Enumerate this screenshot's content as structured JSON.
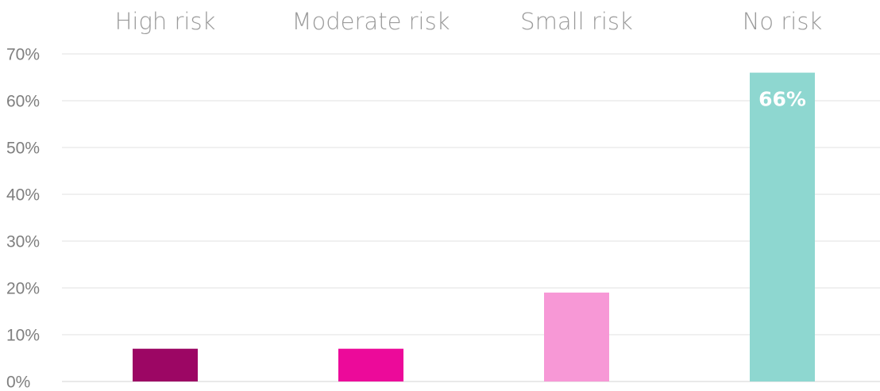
{
  "chart_data": {
    "type": "bar",
    "categories": [
      "High risk",
      "Moderate risk",
      "Small risk",
      "No risk"
    ],
    "values": [
      7,
      7,
      19,
      66
    ],
    "value_unit": "%",
    "ylim": [
      0,
      70
    ],
    "yticks": [
      0,
      10,
      20,
      30,
      40,
      50,
      60,
      70
    ],
    "ytick_labels": [
      "0%",
      "10%",
      "20%",
      "30%",
      "40%",
      "50%",
      "60%",
      "70%"
    ],
    "category_axis_position": "top",
    "grid": true,
    "colors": [
      "#9c0664",
      "#ec0a9a",
      "#f798d6",
      "#8ed7d0"
    ],
    "data_labels": [
      "",
      "",
      "",
      "66%"
    ]
  }
}
